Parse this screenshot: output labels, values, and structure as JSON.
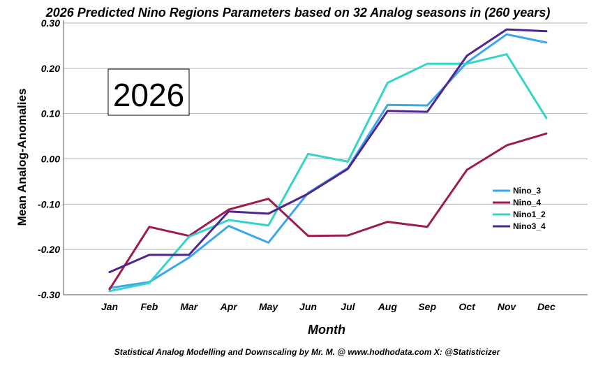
{
  "chart_data": {
    "type": "line",
    "title": "2026 Predicted  Nino Regions Parameters based on 32 Analog seasons in (260 years)",
    "xlabel": "Month",
    "ylabel": "Mean Analog-Anomalies",
    "footer": "Statistical Analog Modelling and Downscaling by Mr. M. @ www.hodhodata.com X: @Statisticizer",
    "annotation": "2026",
    "categories": [
      "Jan",
      "Feb",
      "Mar",
      "Apr",
      "May",
      "Jun",
      "Jul",
      "Aug",
      "Sep",
      "Oct",
      "Nov",
      "Dec"
    ],
    "ylim": [
      -0.3,
      0.3
    ],
    "yticks": [
      -0.3,
      -0.2,
      -0.1,
      0.0,
      0.1,
      0.2,
      0.3
    ],
    "ytick_labels": [
      "-0.30",
      "-0.20",
      "-0.10",
      "0.00",
      "0.10",
      "0.20",
      "0.30"
    ],
    "grid": "horizontal",
    "legend_position": "right",
    "series": [
      {
        "name": "Nino_3",
        "color": "#3aa6ee",
        "values": [
          -0.285,
          -0.272,
          -0.218,
          -0.148,
          -0.185,
          -0.075,
          -0.02,
          0.119,
          0.118,
          0.213,
          0.275,
          0.257
        ]
      },
      {
        "name": "Nino_4",
        "color": "#9c1b52",
        "values": [
          -0.288,
          -0.15,
          -0.17,
          -0.112,
          -0.088,
          -0.17,
          -0.169,
          -0.139,
          -0.15,
          -0.024,
          0.03,
          0.056
        ]
      },
      {
        "name": "Nino1_2",
        "color": "#35d4c8",
        "values": [
          -0.292,
          -0.274,
          -0.172,
          -0.135,
          -0.147,
          0.011,
          -0.006,
          0.168,
          0.21,
          0.21,
          0.231,
          0.09
        ]
      },
      {
        "name": "Nino3_4",
        "color": "#52248e",
        "values": [
          -0.25,
          -0.212,
          -0.212,
          -0.116,
          -0.121,
          -0.077,
          -0.022,
          0.106,
          0.104,
          0.228,
          0.286,
          0.282
        ]
      }
    ]
  }
}
